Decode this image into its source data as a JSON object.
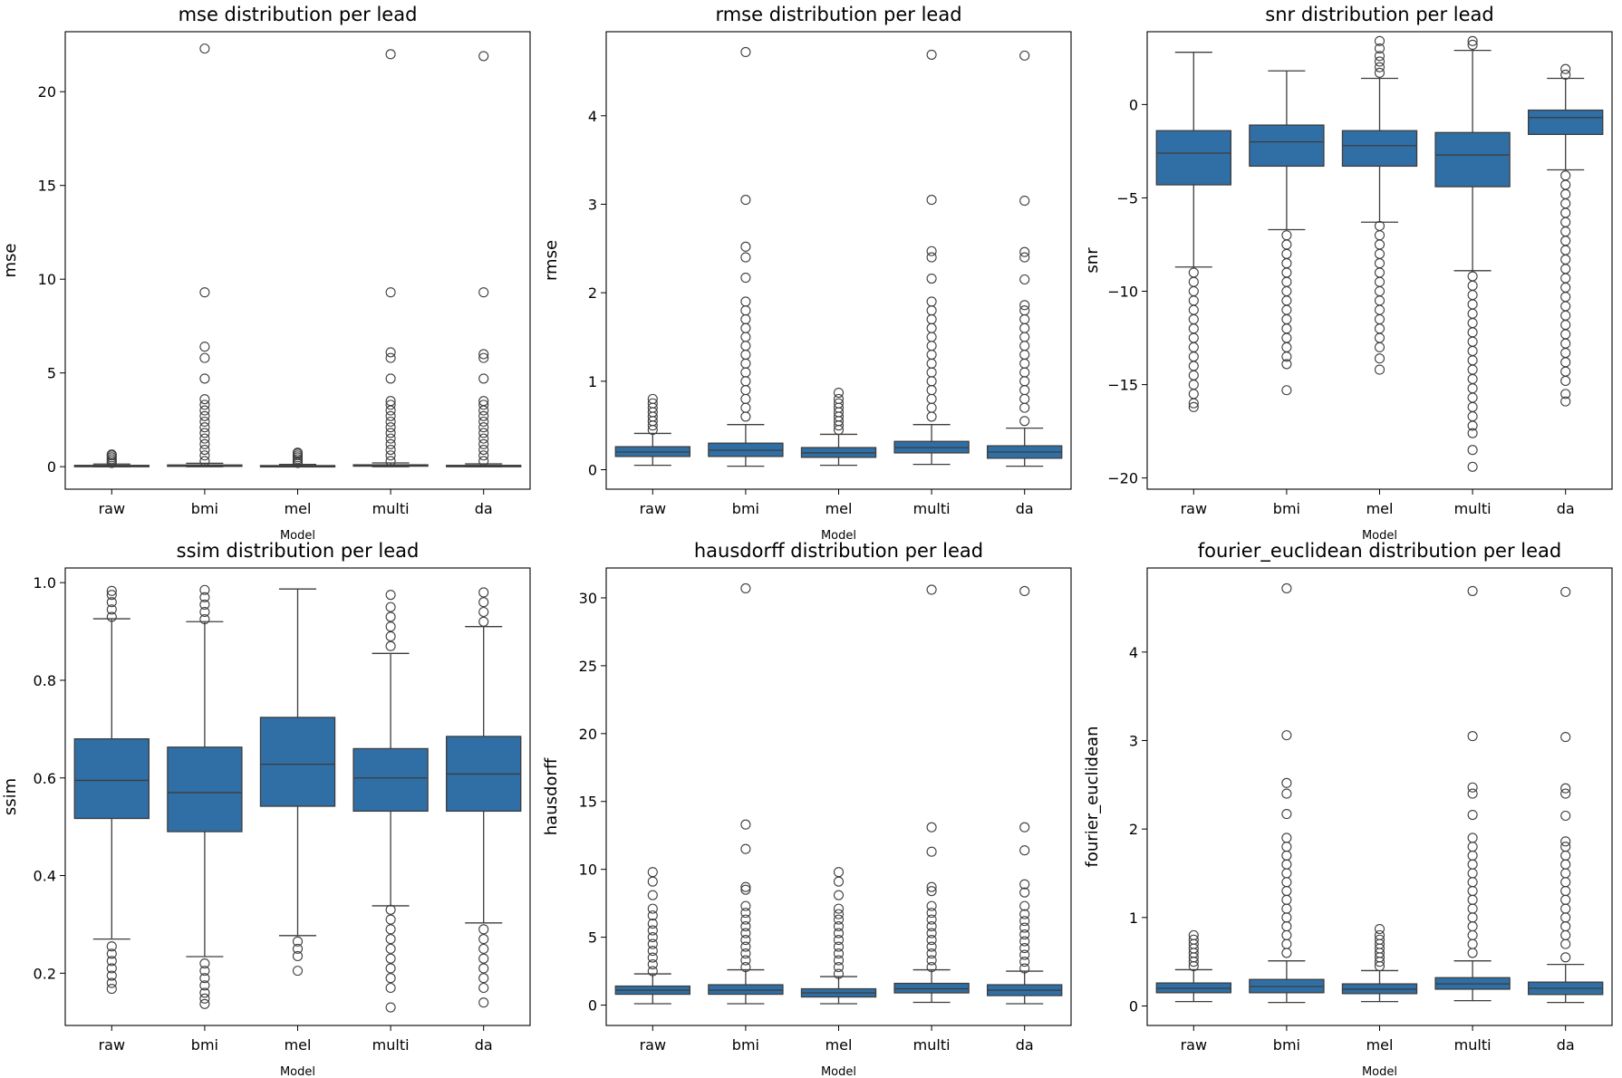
{
  "chart_data": [
    {
      "type": "box",
      "title": "mse distribution per lead",
      "xlabel": "Model",
      "ylabel": "mse",
      "ylim": [
        -1.2,
        23.2
      ],
      "yticks": [
        0,
        5,
        10,
        15,
        20
      ],
      "ytick_labels": [
        "0",
        "5",
        "10",
        "15",
        "20"
      ],
      "categories": [
        "raw",
        "bmi",
        "mel",
        "multi",
        "da"
      ],
      "boxes": [
        {
          "q1": 0.02,
          "median": 0.04,
          "q3": 0.07,
          "whisker_low": 0.0,
          "whisker_high": 0.14
        },
        {
          "q1": 0.03,
          "median": 0.05,
          "q3": 0.09,
          "whisker_low": 0.0,
          "whisker_high": 0.18
        },
        {
          "q1": 0.02,
          "median": 0.03,
          "q3": 0.06,
          "whisker_low": 0.0,
          "whisker_high": 0.12
        },
        {
          "q1": 0.03,
          "median": 0.06,
          "q3": 0.1,
          "whisker_low": 0.0,
          "whisker_high": 0.2
        },
        {
          "q1": 0.02,
          "median": 0.04,
          "q3": 0.07,
          "whisker_low": 0.0,
          "whisker_high": 0.15
        }
      ],
      "outliers": [
        [
          0.2,
          0.3,
          0.4,
          0.5,
          0.6,
          0.65
        ],
        [
          0.3,
          0.6,
          0.9,
          1.2,
          1.5,
          1.8,
          2.1,
          2.4,
          2.7,
          3.0,
          3.3,
          3.6,
          4.7,
          5.8,
          6.4,
          9.3,
          22.3
        ],
        [
          0.2,
          0.3,
          0.4,
          0.5,
          0.6,
          0.7,
          0.75
        ],
        [
          0.3,
          0.6,
          0.9,
          1.2,
          1.5,
          1.8,
          2.1,
          2.4,
          2.7,
          3.0,
          3.3,
          3.5,
          4.7,
          5.8,
          6.1,
          9.3,
          22.0
        ],
        [
          0.3,
          0.6,
          0.9,
          1.2,
          1.5,
          1.8,
          2.1,
          2.4,
          2.7,
          3.0,
          3.3,
          3.5,
          4.7,
          5.8,
          6.0,
          9.3,
          21.9
        ]
      ]
    },
    {
      "type": "box",
      "title": "rmse distribution per lead",
      "xlabel": "Model",
      "ylabel": "rmse",
      "ylim": [
        -0.22,
        4.95
      ],
      "yticks": [
        0,
        1,
        2,
        3,
        4
      ],
      "ytick_labels": [
        "0",
        "1",
        "2",
        "3",
        "4"
      ],
      "categories": [
        "raw",
        "bmi",
        "mel",
        "multi",
        "da"
      ],
      "boxes": [
        {
          "q1": 0.15,
          "median": 0.2,
          "q3": 0.26,
          "whisker_low": 0.05,
          "whisker_high": 0.41
        },
        {
          "q1": 0.15,
          "median": 0.22,
          "q3": 0.3,
          "whisker_low": 0.04,
          "whisker_high": 0.51
        },
        {
          "q1": 0.14,
          "median": 0.19,
          "q3": 0.25,
          "whisker_low": 0.05,
          "whisker_high": 0.4
        },
        {
          "q1": 0.19,
          "median": 0.25,
          "q3": 0.32,
          "whisker_low": 0.06,
          "whisker_high": 0.51
        },
        {
          "q1": 0.13,
          "median": 0.2,
          "q3": 0.27,
          "whisker_low": 0.04,
          "whisker_high": 0.47
        }
      ],
      "outliers": [
        [
          0.45,
          0.5,
          0.55,
          0.6,
          0.65,
          0.7,
          0.75,
          0.8
        ],
        [
          0.6,
          0.7,
          0.8,
          0.9,
          1.0,
          1.1,
          1.2,
          1.3,
          1.4,
          1.5,
          1.6,
          1.7,
          1.8,
          1.9,
          2.17,
          2.4,
          2.52,
          3.05,
          4.72
        ],
        [
          0.45,
          0.5,
          0.55,
          0.6,
          0.65,
          0.7,
          0.75,
          0.8,
          0.87
        ],
        [
          0.6,
          0.7,
          0.8,
          0.9,
          1.0,
          1.1,
          1.2,
          1.3,
          1.4,
          1.5,
          1.6,
          1.7,
          1.8,
          1.9,
          2.16,
          2.4,
          2.47,
          3.05,
          4.69
        ],
        [
          0.55,
          0.7,
          0.8,
          0.9,
          1.0,
          1.1,
          1.2,
          1.3,
          1.4,
          1.5,
          1.6,
          1.7,
          1.8,
          1.86,
          2.15,
          2.4,
          2.46,
          3.04,
          4.68
        ]
      ]
    },
    {
      "type": "box",
      "title": "snr distribution per lead",
      "xlabel": "Model",
      "ylabel": "snr",
      "ylim": [
        -20.6,
        3.9
      ],
      "yticks": [
        -20,
        -15,
        -10,
        -5,
        0
      ],
      "ytick_labels": [
        "−20",
        "−15",
        "−10",
        "−5",
        "0"
      ],
      "categories": [
        "raw",
        "bmi",
        "mel",
        "multi",
        "da"
      ],
      "boxes": [
        {
          "q1": -4.3,
          "median": -2.6,
          "q3": -1.4,
          "whisker_low": -8.7,
          "whisker_high": 2.8
        },
        {
          "q1": -3.3,
          "median": -2.0,
          "q3": -1.1,
          "whisker_low": -6.7,
          "whisker_high": 1.8
        },
        {
          "q1": -3.3,
          "median": -2.2,
          "q3": -1.4,
          "whisker_low": -6.3,
          "whisker_high": 1.4
        },
        {
          "q1": -4.4,
          "median": -2.7,
          "q3": -1.5,
          "whisker_low": -8.9,
          "whisker_high": 2.9
        },
        {
          "q1": -1.6,
          "median": -0.7,
          "q3": -0.3,
          "whisker_low": -3.5,
          "whisker_high": 1.4
        }
      ],
      "outliers": [
        [
          -9.0,
          -9.5,
          -10.0,
          -10.5,
          -11.0,
          -11.5,
          -12.0,
          -12.5,
          -13.0,
          -13.5,
          -14.0,
          -14.5,
          -15.0,
          -15.5,
          -16.0,
          -16.2
        ],
        [
          -7.0,
          -7.5,
          -8.0,
          -8.5,
          -9.0,
          -9.5,
          -10.0,
          -10.5,
          -11.0,
          -11.5,
          -12.0,
          -12.5,
          -13.0,
          -13.5,
          -13.9,
          -15.3
        ],
        [
          -6.5,
          -7.0,
          -7.5,
          -8.0,
          -8.5,
          -9.0,
          -9.5,
          -10.0,
          -10.5,
          -11.0,
          -11.5,
          -12.0,
          -12.5,
          -13.0,
          -13.6,
          -14.2,
          1.7,
          2.0,
          2.3,
          2.6,
          3.0,
          3.4
        ],
        [
          -9.2,
          -9.7,
          -10.2,
          -10.7,
          -11.2,
          -11.7,
          -12.2,
          -12.7,
          -13.2,
          -13.7,
          -14.2,
          -14.7,
          -15.2,
          -15.7,
          -16.2,
          -16.7,
          -17.2,
          -17.6,
          -18.5,
          -19.4,
          3.2,
          3.4
        ],
        [
          -3.8,
          -4.3,
          -4.8,
          -5.3,
          -5.8,
          -6.3,
          -6.8,
          -7.3,
          -7.8,
          -8.3,
          -8.8,
          -9.3,
          -9.8,
          -10.3,
          -10.8,
          -11.3,
          -11.8,
          -12.3,
          -12.8,
          -13.3,
          -13.8,
          -14.3,
          -14.8,
          -15.5,
          -15.9,
          1.6,
          1.9
        ]
      ]
    },
    {
      "type": "box",
      "title": "ssim distribution per lead",
      "xlabel": "Model",
      "ylabel": "ssim",
      "ylim": [
        0.093,
        1.03
      ],
      "yticks": [
        0.2,
        0.4,
        0.6,
        0.8,
        1.0
      ],
      "ytick_labels": [
        "0.2",
        "0.4",
        "0.6",
        "0.8",
        "1.0"
      ],
      "categories": [
        "raw",
        "bmi",
        "mel",
        "multi",
        "da"
      ],
      "boxes": [
        {
          "q1": 0.517,
          "median": 0.595,
          "q3": 0.68,
          "whisker_low": 0.27,
          "whisker_high": 0.926
        },
        {
          "q1": 0.49,
          "median": 0.57,
          "q3": 0.663,
          "whisker_low": 0.234,
          "whisker_high": 0.92
        },
        {
          "q1": 0.542,
          "median": 0.628,
          "q3": 0.724,
          "whisker_low": 0.277,
          "whisker_high": 0.987
        },
        {
          "q1": 0.532,
          "median": 0.6,
          "q3": 0.66,
          "whisker_low": 0.338,
          "whisker_high": 0.855
        },
        {
          "q1": 0.532,
          "median": 0.608,
          "q3": 0.685,
          "whisker_low": 0.303,
          "whisker_high": 0.91
        }
      ],
      "outliers": [
        [
          0.255,
          0.24,
          0.225,
          0.21,
          0.195,
          0.18,
          0.168,
          0.93,
          0.945,
          0.96,
          0.975,
          0.983
        ],
        [
          0.22,
          0.205,
          0.19,
          0.175,
          0.16,
          0.148,
          0.137,
          0.925,
          0.94,
          0.955,
          0.97,
          0.985
        ],
        [
          0.265,
          0.25,
          0.235,
          0.205
        ],
        [
          0.33,
          0.31,
          0.29,
          0.27,
          0.25,
          0.23,
          0.21,
          0.19,
          0.17,
          0.13,
          0.87,
          0.89,
          0.91,
          0.93,
          0.95,
          0.975
        ],
        [
          0.29,
          0.27,
          0.25,
          0.23,
          0.21,
          0.19,
          0.17,
          0.14,
          0.92,
          0.94,
          0.96,
          0.98
        ]
      ]
    },
    {
      "type": "box",
      "title": "hausdorff distribution per lead",
      "xlabel": "Model",
      "ylabel": "hausdorff",
      "ylim": [
        -1.5,
        32.2
      ],
      "yticks": [
        0,
        5,
        10,
        15,
        20,
        25,
        30
      ],
      "ytick_labels": [
        "0",
        "5",
        "10",
        "15",
        "20",
        "25",
        "30"
      ],
      "categories": [
        "raw",
        "bmi",
        "mel",
        "multi",
        "da"
      ],
      "boxes": [
        {
          "q1": 0.8,
          "median": 1.1,
          "q3": 1.4,
          "whisker_low": 0.1,
          "whisker_high": 2.3
        },
        {
          "q1": 0.8,
          "median": 1.1,
          "q3": 1.5,
          "whisker_low": 0.1,
          "whisker_high": 2.6
        },
        {
          "q1": 0.6,
          "median": 0.9,
          "q3": 1.2,
          "whisker_low": 0.1,
          "whisker_high": 2.1
        },
        {
          "q1": 0.9,
          "median": 1.2,
          "q3": 1.6,
          "whisker_low": 0.2,
          "whisker_high": 2.6
        },
        {
          "q1": 0.7,
          "median": 1.1,
          "q3": 1.5,
          "whisker_low": 0.1,
          "whisker_high": 2.5
        }
      ],
      "outliers": [
        [
          2.5,
          3.0,
          3.5,
          4.0,
          4.5,
          5.0,
          5.5,
          6.0,
          6.6,
          7.1,
          8.1,
          9.1,
          9.8
        ],
        [
          2.8,
          3.3,
          3.8,
          4.3,
          4.8,
          5.3,
          5.8,
          6.3,
          6.8,
          7.3,
          8.5,
          8.7,
          11.5,
          13.3,
          30.7
        ],
        [
          2.3,
          2.8,
          3.3,
          3.8,
          4.3,
          4.8,
          5.3,
          5.8,
          6.3,
          6.7,
          7.1,
          8.1,
          9.1,
          9.8
        ],
        [
          2.8,
          3.3,
          3.8,
          4.3,
          4.8,
          5.3,
          5.8,
          6.3,
          6.8,
          7.3,
          8.4,
          8.7,
          11.3,
          13.1,
          30.6
        ],
        [
          2.7,
          3.2,
          3.7,
          4.2,
          4.7,
          5.2,
          5.7,
          6.2,
          6.7,
          7.3,
          8.3,
          8.9,
          11.4,
          13.1,
          30.5
        ]
      ]
    },
    {
      "type": "box",
      "title": "fourier_euclidean distribution per lead",
      "xlabel": "Model",
      "ylabel": "fourier_euclidean",
      "ylim": [
        -0.22,
        4.95
      ],
      "yticks": [
        0,
        1,
        2,
        3,
        4
      ],
      "ytick_labels": [
        "0",
        "1",
        "2",
        "3",
        "4"
      ],
      "categories": [
        "raw",
        "bmi",
        "mel",
        "multi",
        "da"
      ],
      "boxes": [
        {
          "q1": 0.15,
          "median": 0.2,
          "q3": 0.26,
          "whisker_low": 0.05,
          "whisker_high": 0.41
        },
        {
          "q1": 0.15,
          "median": 0.22,
          "q3": 0.3,
          "whisker_low": 0.04,
          "whisker_high": 0.51
        },
        {
          "q1": 0.14,
          "median": 0.19,
          "q3": 0.25,
          "whisker_low": 0.05,
          "whisker_high": 0.4
        },
        {
          "q1": 0.19,
          "median": 0.25,
          "q3": 0.32,
          "whisker_low": 0.06,
          "whisker_high": 0.51
        },
        {
          "q1": 0.13,
          "median": 0.2,
          "q3": 0.27,
          "whisker_low": 0.04,
          "whisker_high": 0.47
        }
      ],
      "outliers": [
        [
          0.45,
          0.5,
          0.55,
          0.6,
          0.65,
          0.7,
          0.75,
          0.8
        ],
        [
          0.6,
          0.7,
          0.8,
          0.9,
          1.0,
          1.1,
          1.2,
          1.3,
          1.4,
          1.5,
          1.6,
          1.7,
          1.8,
          1.9,
          2.17,
          2.4,
          2.52,
          3.06,
          4.72
        ],
        [
          0.45,
          0.5,
          0.55,
          0.6,
          0.65,
          0.7,
          0.75,
          0.8,
          0.87
        ],
        [
          0.6,
          0.7,
          0.8,
          0.9,
          1.0,
          1.1,
          1.2,
          1.3,
          1.4,
          1.5,
          1.6,
          1.7,
          1.8,
          1.9,
          2.16,
          2.4,
          2.47,
          3.05,
          4.69
        ],
        [
          0.55,
          0.7,
          0.8,
          0.9,
          1.0,
          1.1,
          1.2,
          1.3,
          1.4,
          1.5,
          1.6,
          1.7,
          1.8,
          1.86,
          2.15,
          2.4,
          2.46,
          3.04,
          4.68
        ]
      ]
    }
  ],
  "colors": {
    "box_fill": "#2f6fa6",
    "line": "#3d3d3d",
    "axis": "#000000",
    "background": "#ffffff"
  }
}
